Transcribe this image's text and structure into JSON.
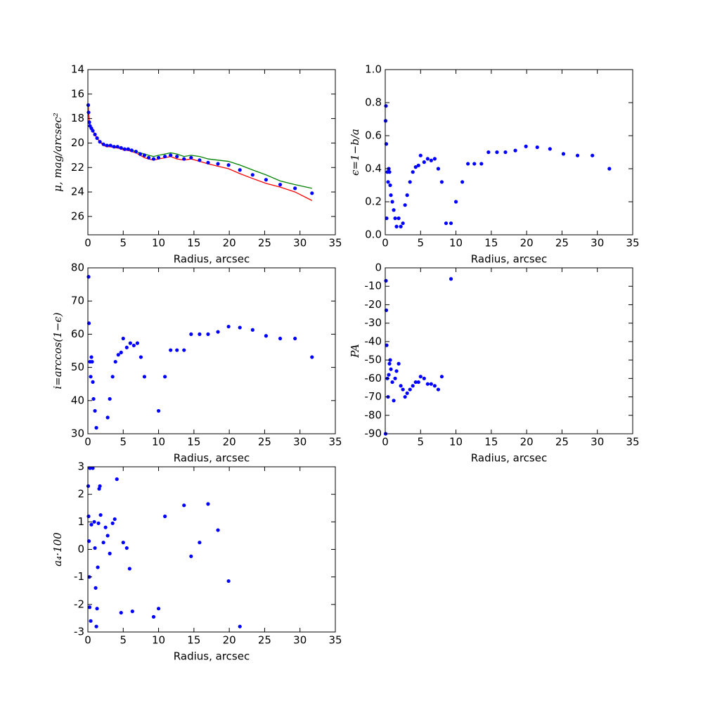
{
  "chart_data": [
    {
      "type": "line",
      "xlabel": "Radius, arcsec",
      "ylabel": "μ, mag/arcsec²",
      "xlim": [
        0,
        35
      ],
      "xticks": [
        0,
        5,
        10,
        15,
        20,
        25,
        30,
        35
      ],
      "ylim": [
        14,
        27.5
      ],
      "invert_y": true,
      "yticks": [
        14,
        16,
        18,
        20,
        22,
        24,
        26
      ],
      "series": [
        {
          "mode": "line",
          "color": "#008000",
          "x": [
            0.05,
            0.1,
            0.2,
            0.3,
            0.5,
            0.7,
            1,
            1.3,
            1.7,
            2.2,
            2.7,
            3.2,
            3.7,
            4.2,
            4.7,
            5.2,
            5.7,
            6.2,
            6.8,
            7.4,
            8,
            8.6,
            9.3,
            10,
            10.9,
            11.7,
            12.6,
            13.6,
            14.6,
            15.8,
            17,
            18.4,
            19.9,
            21.5,
            23.3,
            25.2,
            27.2,
            29.3,
            31.7
          ],
          "values": [
            16.9,
            17.5,
            18.3,
            18.6,
            18.8,
            19.0,
            19.3,
            19.6,
            19.9,
            20.1,
            20.2,
            20.2,
            20.3,
            20.3,
            20.4,
            20.5,
            20.5,
            20.6,
            20.7,
            20.8,
            20.9,
            21.0,
            21.1,
            21.0,
            20.9,
            20.8,
            20.9,
            21.1,
            21.0,
            21.1,
            21.3,
            21.4,
            21.5,
            21.8,
            22.2,
            22.6,
            23.1,
            23.4,
            23.7
          ]
        },
        {
          "mode": "line",
          "color": "#ff0000",
          "x": [
            0.05,
            0.1,
            0.2,
            0.3,
            0.5,
            0.7,
            1,
            1.3,
            1.7,
            2.2,
            2.7,
            3.2,
            3.7,
            4.2,
            4.7,
            5.2,
            5.7,
            6.2,
            6.8,
            7.4,
            8,
            8.6,
            9.3,
            10,
            10.9,
            11.7,
            12.6,
            13.6,
            14.6,
            15.8,
            17,
            18.4,
            19.9,
            21.5,
            23.3,
            25.2,
            27.2,
            29.3,
            31.7
          ],
          "values": [
            16.9,
            17.5,
            18.3,
            18.6,
            18.8,
            19.0,
            19.3,
            19.6,
            19.9,
            20.2,
            20.3,
            20.3,
            20.4,
            20.4,
            20.5,
            20.6,
            20.6,
            20.7,
            20.8,
            21.0,
            21.2,
            21.3,
            21.4,
            21.3,
            21.2,
            21.1,
            21.3,
            21.4,
            21.3,
            21.5,
            21.7,
            21.9,
            22.1,
            22.5,
            22.9,
            23.3,
            23.6,
            24.0,
            24.7
          ]
        },
        {
          "mode": "points",
          "color": "#0000ff",
          "x": [
            0.05,
            0.1,
            0.2,
            0.3,
            0.5,
            0.7,
            1,
            1.3,
            1.7,
            2.2,
            2.7,
            3.2,
            3.7,
            4.2,
            4.7,
            5.2,
            5.7,
            6.2,
            6.8,
            7.4,
            8,
            8.6,
            9.3,
            10,
            10.9,
            11.7,
            12.6,
            13.6,
            14.6,
            15.8,
            17,
            18.4,
            19.9,
            21.5,
            23.3,
            25.2,
            27.2,
            29.3,
            31.7
          ],
          "values": [
            16.9,
            17.5,
            18.3,
            18.6,
            18.8,
            19.0,
            19.3,
            19.6,
            19.9,
            20.1,
            20.2,
            20.2,
            20.3,
            20.3,
            20.4,
            20.5,
            20.5,
            20.6,
            20.7,
            20.9,
            21.0,
            21.2,
            21.3,
            21.2,
            21.1,
            21.0,
            21.1,
            21.3,
            21.2,
            21.4,
            21.6,
            21.7,
            21.8,
            22.2,
            22.6,
            23.0,
            23.4,
            23.7,
            24.1
          ]
        }
      ]
    },
    {
      "type": "scatter",
      "xlabel": "Radius, arcsec",
      "ylabel": "ϵ=1−b/a",
      "xlim": [
        0,
        35
      ],
      "xticks": [
        0,
        5,
        10,
        15,
        20,
        25,
        30,
        35
      ],
      "ylim": [
        0,
        1
      ],
      "yticks": [
        {
          "value": 0,
          "label": "0.0"
        },
        0.2,
        0.4,
        0.6,
        0.8,
        {
          "value": 1,
          "label": "1.0"
        }
      ],
      "series": [
        {
          "mode": "points",
          "color": "#0000ff",
          "x": [
            0.05,
            0.1,
            0.15,
            0.2,
            0.3,
            0.4,
            0.5,
            0.6,
            0.7,
            0.8,
            1.0,
            1.2,
            1.4,
            1.6,
            1.9,
            2.2,
            2.5,
            2.8,
            3.1,
            3.5,
            3.9,
            4.3,
            4.7,
            5.0,
            5.5,
            6,
            6.5,
            7,
            7.5,
            8,
            8.6,
            9.3,
            10,
            10.9,
            11.7,
            12.6,
            13.6,
            14.6,
            15.8,
            17,
            18.4,
            19.9,
            21.5,
            23.3,
            25.2,
            27.2,
            29.3,
            31.7
          ],
          "values": [
            0.69,
            0.78,
            0.55,
            0.1,
            0.38,
            0.32,
            0.4,
            0.38,
            0.3,
            0.24,
            0.2,
            0.15,
            0.1,
            0.05,
            0.1,
            0.05,
            0.07,
            0.18,
            0.24,
            0.32,
            0.38,
            0.41,
            0.42,
            0.48,
            0.44,
            0.46,
            0.45,
            0.46,
            0.4,
            0.32,
            0.07,
            0.07,
            0.2,
            0.32,
            0.43,
            0.43,
            0.43,
            0.5,
            0.5,
            0.5,
            0.51,
            0.535,
            0.53,
            0.52,
            0.49,
            0.48,
            0.48,
            0.4
          ]
        }
      ]
    },
    {
      "type": "scatter",
      "xlabel": "Radius, arcsec",
      "ylabel": "i=arccos(1−ϵ)",
      "xlim": [
        0,
        35
      ],
      "xticks": [
        0,
        5,
        10,
        15,
        20,
        25,
        30,
        35
      ],
      "ylim": [
        30,
        80
      ],
      "yticks": [
        30,
        40,
        50,
        60,
        70,
        80
      ],
      "series": [
        {
          "mode": "points",
          "color": "#0000ff",
          "x": [
            0.1,
            0.15,
            0.3,
            0.4,
            0.5,
            0.6,
            0.7,
            0.8,
            1.0,
            1.2,
            2.8,
            3.1,
            3.5,
            3.9,
            4.3,
            4.7,
            5.0,
            5.5,
            6,
            6.5,
            7,
            7.5,
            8,
            10,
            10.9,
            11.7,
            12.6,
            13.6,
            14.6,
            15.8,
            17,
            18.4,
            19.9,
            21.5,
            23.3,
            25.2,
            27.2,
            29.3,
            31.7
          ],
          "values": [
            77.3,
            63.3,
            51.7,
            47.2,
            53.1,
            51.7,
            45.6,
            40.5,
            36.9,
            31.8,
            34.9,
            40.5,
            47.2,
            51.7,
            53.8,
            54.5,
            58.7,
            56.0,
            57.3,
            56.6,
            57.3,
            53.1,
            47.2,
            36.9,
            47.2,
            55.2,
            55.2,
            55.2,
            60,
            60,
            60,
            60.7,
            62.3,
            62,
            61.3,
            59.5,
            58.7,
            58.7,
            53.1
          ]
        }
      ]
    },
    {
      "type": "scatter",
      "xlabel": "Radius, arcsec",
      "ylabel": "PA",
      "xlim": [
        0,
        35
      ],
      "xticks": [
        0,
        5,
        10,
        15,
        20,
        25,
        30,
        35
      ],
      "ylim": [
        -90,
        0
      ],
      "yticks": [
        -90,
        -80,
        -70,
        -60,
        -50,
        -40,
        -30,
        -20,
        -10,
        0
      ],
      "series": [
        {
          "mode": "points",
          "color": "#0000ff",
          "x": [
            0.05,
            0.1,
            0.15,
            0.2,
            0.3,
            0.4,
            0.5,
            0.6,
            0.7,
            0.8,
            1.0,
            1.2,
            1.4,
            1.6,
            1.9,
            2.2,
            2.5,
            2.8,
            3.1,
            3.5,
            3.9,
            4.3,
            4.7,
            5.0,
            5.5,
            6,
            6.5,
            7,
            7.5,
            8,
            9.3
          ],
          "values": [
            -90,
            -7,
            -23,
            -42,
            -60,
            -70,
            -58,
            -52,
            -50,
            -55,
            -62,
            -72,
            -60,
            -56,
            -52,
            -64,
            -66,
            -70,
            -68,
            -66,
            -64,
            -62,
            -62,
            -59,
            -60,
            -63,
            -63,
            -64,
            -66,
            -59,
            -6
          ]
        }
      ]
    },
    {
      "type": "scatter",
      "xlabel": "Radius, arcsec",
      "ylabel": "a₄·100",
      "xlim": [
        0,
        35
      ],
      "xticks": [
        0,
        5,
        10,
        15,
        20,
        25,
        30,
        35
      ],
      "ylim": [
        -3,
        3
      ],
      "yticks": [
        -3,
        -2,
        -1,
        0,
        1,
        2,
        3
      ],
      "series": [
        {
          "mode": "points",
          "color": "#0000ff",
          "x": [
            0.05,
            0.1,
            0.15,
            0.2,
            0.25,
            0.3,
            0.4,
            0.5,
            0.7,
            0.9,
            1.0,
            1.1,
            1.2,
            1.3,
            1.4,
            1.5,
            1.6,
            1.7,
            1.8,
            2.2,
            2.5,
            2.8,
            3.1,
            3.5,
            3.8,
            4.1,
            4.7,
            5.0,
            5.5,
            5.9,
            6.3,
            9.3,
            10,
            10.9,
            13.6,
            14.6,
            15.8,
            17,
            18.4,
            19.9,
            21.5
          ],
          "values": [
            2.3,
            1.2,
            0.3,
            -1.0,
            -2.1,
            2.95,
            -2.6,
            0.9,
            2.95,
            1.0,
            0.05,
            -1.4,
            -2.8,
            -2.15,
            -0.65,
            0.95,
            2.2,
            2.3,
            1.25,
            0.25,
            0.8,
            0.5,
            -0.15,
            0.95,
            1.1,
            2.55,
            -2.3,
            0.25,
            0.05,
            -0.7,
            -2.25,
            -2.45,
            -2.15,
            1.2,
            1.6,
            -0.25,
            0.25,
            1.65,
            0.7,
            -1.15,
            -2.8
          ]
        }
      ]
    }
  ]
}
